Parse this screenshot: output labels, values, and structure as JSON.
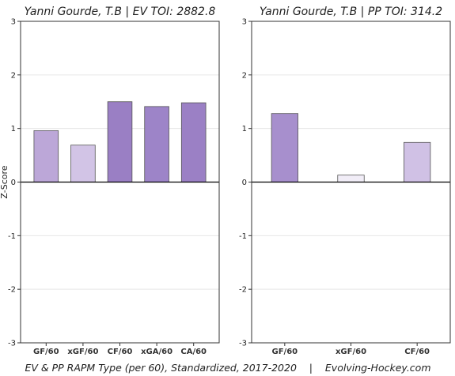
{
  "footer": "EV & PP RAPM Type (per 60), Standardized, 2017-2020    |    Evolving-Hockey.com",
  "chart_data": [
    {
      "type": "bar",
      "title": "Yanni Gourde, T.B  |  EV TOI: 2882.8",
      "ylabel": "Z-Score",
      "ylim": [
        -3,
        3
      ],
      "yticks": [
        3,
        2,
        1,
        0,
        -1,
        -2,
        -3
      ],
      "grid": true,
      "categories": [
        "GF/60",
        "xGF/60",
        "CF/60",
        "xGA/60",
        "CA/60"
      ],
      "values": [
        0.96,
        0.69,
        1.5,
        1.41,
        1.48
      ],
      "colors": [
        "#bca7d8",
        "#d2c4e6",
        "#9a7fc4",
        "#9d84c8",
        "#9b80c5"
      ]
    },
    {
      "type": "bar",
      "title": "Yanni Gourde, T.B  |  PP TOI: 314.2",
      "ylabel": "",
      "ylim": [
        -3,
        3
      ],
      "yticks": [
        3,
        2,
        1,
        0,
        -1,
        -2,
        -3
      ],
      "grid": true,
      "categories": [
        "GF/60",
        "xGF/60",
        "CF/60"
      ],
      "values": [
        1.28,
        0.13,
        0.74
      ],
      "colors": [
        "#a78fcd",
        "#f1edf7",
        "#d0c1e5"
      ]
    }
  ]
}
